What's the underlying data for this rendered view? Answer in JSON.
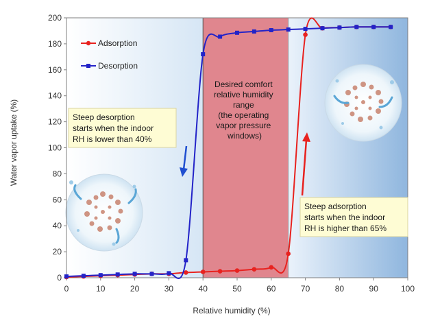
{
  "chart_data": {
    "type": "line",
    "xlabel": "Relative humidity (%)",
    "ylabel": "Water vapor uptake (%)",
    "xlim": [
      0,
      100
    ],
    "ylim": [
      0,
      200
    ],
    "x_ticks": [
      0,
      10,
      20,
      30,
      40,
      50,
      60,
      70,
      80,
      90,
      100
    ],
    "y_ticks": [
      0,
      20,
      40,
      60,
      80,
      100,
      120,
      140,
      160,
      180,
      200
    ],
    "grid": false,
    "legend_position": "top-left",
    "series": [
      {
        "name": "Adsorption",
        "color": "#e8221f",
        "marker": "circle",
        "x": [
          0,
          5,
          10,
          15,
          20,
          25,
          30,
          35,
          40,
          45,
          50,
          55,
          60,
          65,
          70,
          75,
          80,
          85,
          90,
          95
        ],
        "y": [
          0.5,
          1,
          1.5,
          2,
          2.5,
          3,
          3,
          4,
          4.5,
          5,
          5.5,
          6.5,
          8,
          18.5,
          187,
          192,
          192.5,
          193,
          193,
          193
        ]
      },
      {
        "name": "Desorption",
        "color": "#2323c8",
        "marker": "square",
        "x": [
          0,
          5,
          10,
          15,
          20,
          25,
          30,
          35,
          40,
          45,
          50,
          55,
          60,
          65,
          70,
          75,
          80,
          85,
          90,
          95
        ],
        "y": [
          1,
          1.5,
          2,
          2.5,
          3,
          3,
          3.5,
          13.5,
          172,
          185.5,
          188.5,
          189.5,
          190.5,
          191,
          191.5,
          192,
          192.5,
          193,
          193,
          193
        ]
      }
    ],
    "regions": [
      {
        "x_from": 0,
        "x_to": 40,
        "color": "#d9e8f6"
      },
      {
        "x_from": 40,
        "x_to": 65,
        "color": "#e0868e"
      },
      {
        "x_from": 65,
        "x_to": 100,
        "color": "#a9c9e8"
      }
    ],
    "annotations": {
      "center_box": [
        "Desired comfort",
        "relative humidity",
        "range",
        "(the operating",
        "vapor pressure",
        "windows)"
      ],
      "desorption_note": [
        "Steep desorption",
        "starts when the indoor",
        "RH is lower than 40%"
      ],
      "adsorption_note": [
        "Steep adsorption",
        "starts when the indoor",
        "RH is higher than 65%"
      ]
    },
    "arrows": {
      "desorption_color": "#1f4fd0",
      "adsorption_color": "#e8221f"
    }
  }
}
